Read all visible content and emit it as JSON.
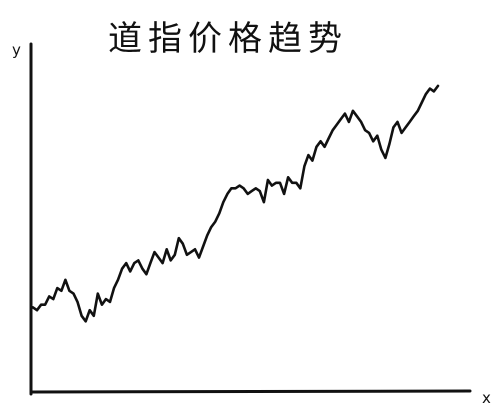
{
  "chart_data": {
    "type": "line",
    "title": "道指价格趋势",
    "xlabel": "x",
    "ylabel": "y",
    "xlim": [
      0,
      100
    ],
    "ylim": [
      0,
      100
    ],
    "grid": false,
    "legend": "none",
    "series": [
      {
        "color": "#111111",
        "x": [
          0,
          1,
          2,
          3,
          4,
          5,
          6,
          7,
          8,
          9,
          10,
          11,
          12,
          13,
          14,
          15,
          16,
          17,
          18,
          19,
          20,
          21,
          22,
          23,
          24,
          25,
          26,
          27,
          28,
          29,
          30,
          31,
          32,
          33,
          34,
          35,
          36,
          37,
          38,
          39,
          40,
          41,
          42,
          43,
          44,
          45,
          46,
          47,
          48,
          49,
          50,
          51,
          52,
          53,
          54,
          55,
          56,
          57,
          58,
          59,
          60,
          61,
          62,
          63,
          64,
          65,
          66,
          67,
          68,
          69,
          70,
          71,
          72,
          73,
          74,
          75,
          76,
          77,
          78,
          79,
          80,
          81,
          82,
          83,
          84,
          85,
          86,
          87,
          88,
          89,
          90,
          91,
          92,
          93,
          94,
          95,
          96,
          97,
          98,
          99,
          100
        ],
        "values": [
          15,
          14,
          16,
          16,
          19,
          18,
          22,
          21,
          25,
          21,
          20,
          17,
          12,
          10,
          14,
          12,
          20,
          16,
          18,
          17,
          22,
          25,
          29,
          31,
          28,
          31,
          32,
          29,
          27,
          31,
          35,
          33,
          31,
          36,
          32,
          34,
          40,
          38,
          34,
          35,
          36,
          33,
          37,
          41,
          44,
          46,
          49,
          53,
          56,
          58,
          58,
          59,
          58,
          56,
          57,
          58,
          57,
          53,
          61,
          59,
          60,
          60,
          56,
          62,
          60,
          60,
          58,
          66,
          70,
          68,
          73,
          75,
          73,
          76,
          79,
          81,
          83,
          85,
          82,
          86,
          84,
          82,
          79,
          78,
          75,
          77,
          72,
          69,
          74,
          80,
          82,
          78,
          80,
          82,
          84,
          86,
          89,
          92,
          94,
          93,
          95
        ]
      }
    ]
  }
}
